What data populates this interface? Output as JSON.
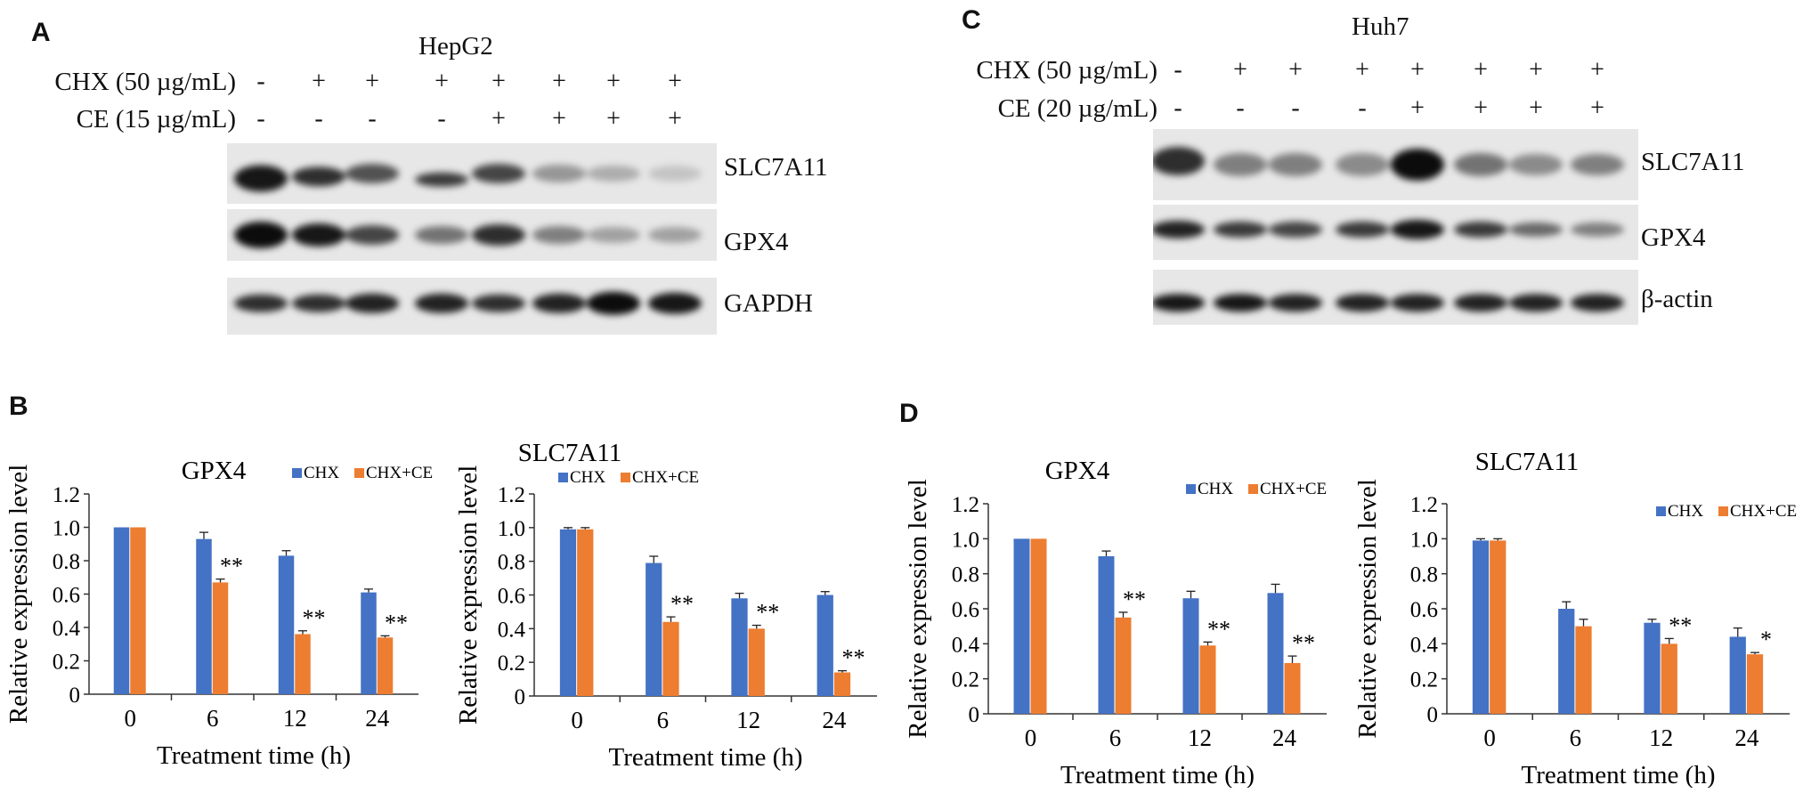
{
  "panels": {
    "A": {
      "letter": "A",
      "cell_line": "HepG2",
      "conditions": [
        {
          "label": "CHX (50 µg/mL)",
          "signs": [
            "-",
            "+",
            "+",
            "+",
            "+",
            "+",
            "+",
            "+"
          ]
        },
        {
          "label": "CE (15 µg/mL)",
          "signs": [
            "-",
            "-",
            "-",
            "-",
            "+",
            "+",
            "+",
            "+"
          ]
        }
      ],
      "proteins": [
        "SLC7A11",
        "GPX4",
        "GAPDH"
      ]
    },
    "C": {
      "letter": "C",
      "cell_line": "Huh7",
      "conditions": [
        {
          "label": "CHX (50 µg/mL)",
          "signs": [
            "-",
            "+",
            "+",
            "+",
            "+",
            "+",
            "+",
            "+"
          ]
        },
        {
          "label": "CE (20 µg/mL)",
          "signs": [
            "-",
            "-",
            "-",
            "-",
            "+",
            "+",
            "+",
            "+"
          ]
        }
      ],
      "proteins": [
        "SLC7A11",
        "GPX4",
        "β-actin"
      ]
    },
    "B": {
      "letter": "B"
    },
    "D": {
      "letter": "D"
    }
  },
  "colors": {
    "chx": "#4472C4",
    "chx_ce": "#ED7D31"
  },
  "chart_data": [
    {
      "panel": "B",
      "type": "bar",
      "title": "GPX4",
      "xlabel": "Treatment time (h)",
      "ylabel": "Relative expression level",
      "categories": [
        "0",
        "6",
        "12",
        "24"
      ],
      "ylim": [
        0,
        1.2
      ],
      "yticks": [
        "0",
        "0.2",
        "0.4",
        "0.6",
        "0.8",
        "1.0",
        "1.2"
      ],
      "series": [
        {
          "name": "CHX",
          "values": [
            1.0,
            0.93,
            0.83,
            0.61
          ],
          "errors": [
            0,
            0.04,
            0.03,
            0.02
          ]
        },
        {
          "name": "CHX+CE",
          "values": [
            1.0,
            0.67,
            0.36,
            0.34
          ],
          "errors": [
            0,
            0.02,
            0.02,
            0.01
          ]
        }
      ],
      "annotations": [
        "",
        "**",
        "**",
        "**"
      ],
      "legend": "top-right"
    },
    {
      "panel": "B",
      "type": "bar",
      "title": "SLC7A11",
      "xlabel": "Treatment time (h)",
      "ylabel": "Relative expression level",
      "categories": [
        "0",
        "6",
        "12",
        "24"
      ],
      "ylim": [
        0,
        1.2
      ],
      "yticks": [
        "0",
        "0.2",
        "0.4",
        "0.6",
        "0.8",
        "1.0",
        "1.2"
      ],
      "series": [
        {
          "name": "CHX",
          "values": [
            0.99,
            0.79,
            0.58,
            0.6
          ],
          "errors": [
            0.01,
            0.04,
            0.03,
            0.02
          ]
        },
        {
          "name": "CHX+CE",
          "values": [
            0.99,
            0.44,
            0.4,
            0.14
          ],
          "errors": [
            0.01,
            0.03,
            0.02,
            0.01
          ]
        }
      ],
      "annotations": [
        "",
        "**",
        "**",
        "**"
      ],
      "legend": "top-right"
    },
    {
      "panel": "D",
      "type": "bar",
      "title": "GPX4",
      "xlabel": "Treatment time (h)",
      "ylabel": "Relative expression level",
      "categories": [
        "0",
        "6",
        "12",
        "24"
      ],
      "ylim": [
        0,
        1.2
      ],
      "yticks": [
        "0",
        "0.2",
        "0.4",
        "0.6",
        "0.8",
        "1.0",
        "1.2"
      ],
      "series": [
        {
          "name": "CHX",
          "values": [
            1.0,
            0.9,
            0.66,
            0.69
          ],
          "errors": [
            0,
            0.03,
            0.04,
            0.05
          ]
        },
        {
          "name": "CHX+CE",
          "values": [
            1.0,
            0.55,
            0.39,
            0.29
          ],
          "errors": [
            0,
            0.03,
            0.02,
            0.04
          ]
        }
      ],
      "annotations": [
        "",
        "**",
        "**",
        "**"
      ],
      "legend": "top-right"
    },
    {
      "panel": "D",
      "type": "bar",
      "title": "SLC7A11",
      "xlabel": "Treatment time (h)",
      "ylabel": "Relative expression level",
      "categories": [
        "0",
        "6",
        "12",
        "24"
      ],
      "ylim": [
        0,
        1.2
      ],
      "yticks": [
        "0",
        "0.2",
        "0.4",
        "0.6",
        "0.8",
        "1.0",
        "1.2"
      ],
      "series": [
        {
          "name": "CHX",
          "values": [
            0.99,
            0.6,
            0.52,
            0.44
          ],
          "errors": [
            0.01,
            0.04,
            0.02,
            0.05
          ]
        },
        {
          "name": "CHX+CE",
          "values": [
            0.99,
            0.5,
            0.4,
            0.34
          ],
          "errors": [
            0.01,
            0.04,
            0.03,
            0.01
          ]
        }
      ],
      "annotations": [
        "",
        "",
        "**",
        "*"
      ],
      "legend": "top-right"
    }
  ]
}
